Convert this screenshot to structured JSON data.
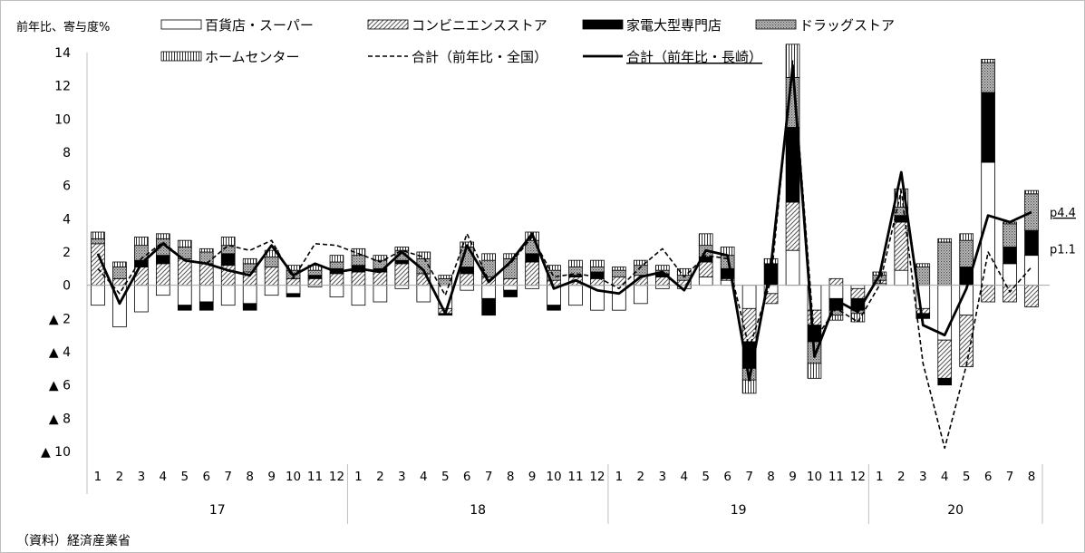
{
  "chart_data": {
    "type": "bar",
    "ylabel": "前年比、寄与度%",
    "ylim": [
      -10,
      14
    ],
    "yticks": [
      {
        "v": 14,
        "label": "14"
      },
      {
        "v": 12,
        "label": "12"
      },
      {
        "v": 10,
        "label": "10"
      },
      {
        "v": 8,
        "label": "8"
      },
      {
        "v": 6,
        "label": "6"
      },
      {
        "v": 4,
        "label": "4"
      },
      {
        "v": 2,
        "label": "2"
      },
      {
        "v": 0,
        "label": "0"
      },
      {
        "v": -2,
        "label": "▲ 2"
      },
      {
        "v": -4,
        "label": "▲ 4"
      },
      {
        "v": -6,
        "label": "▲ 6"
      },
      {
        "v": -8,
        "label": "▲ 8"
      },
      {
        "v": -10,
        "label": "▲ 10"
      }
    ],
    "months": [
      "1",
      "2",
      "3",
      "4",
      "5",
      "6",
      "7",
      "8",
      "9",
      "10",
      "11",
      "12",
      "1",
      "2",
      "3",
      "4",
      "5",
      "6",
      "7",
      "8",
      "9",
      "10",
      "11",
      "12",
      "1",
      "2",
      "3",
      "4",
      "5",
      "6",
      "7",
      "8",
      "9",
      "10",
      "11",
      "12",
      "1",
      "2",
      "3",
      "4",
      "5",
      "6",
      "7",
      "8"
    ],
    "years": [
      {
        "label": "17",
        "start": 0,
        "count": 12
      },
      {
        "label": "18",
        "start": 12,
        "count": 12
      },
      {
        "label": "19",
        "start": 24,
        "count": 12
      },
      {
        "label": "20",
        "start": 36,
        "count": 8
      }
    ],
    "series": [
      {
        "name": "百貨店・スーパー",
        "kind": "bar",
        "fill": "white",
        "values": [
          -1.2,
          -2.5,
          -1.6,
          -0.6,
          -1.2,
          -1.0,
          -1.2,
          -1.1,
          -0.6,
          -0.5,
          -0.1,
          -0.7,
          -1.2,
          -1.0,
          -0.2,
          -1.0,
          -1.4,
          -0.3,
          -0.8,
          -0.3,
          -0.2,
          -1.2,
          -1.2,
          -1.5,
          -1.5,
          -1.1,
          -0.2,
          -0.2,
          0.5,
          0.3,
          -1.4,
          -0.5,
          2.1,
          -1.5,
          -0.8,
          -0.2,
          0.1,
          0.9,
          -1.4,
          -3.3,
          -1.8,
          7.4,
          1.3,
          1.8
        ]
      },
      {
        "name": "コンビニエンスストア",
        "kind": "bar",
        "fill": "diag",
        "values": [
          2.5,
          0.4,
          1.1,
          1.3,
          1.6,
          1.3,
          1.2,
          0.8,
          1.1,
          0.4,
          0.4,
          0.7,
          0.8,
          0.8,
          1.3,
          0.7,
          -0.3,
          0.7,
          0.5,
          0.4,
          1.4,
          0.3,
          0.5,
          0.4,
          0.5,
          0.6,
          0.5,
          0.3,
          0.9,
          0.1,
          -2.0,
          -0.6,
          2.9,
          -0.9,
          0.4,
          -0.6,
          0.2,
          2.9,
          -0.3,
          -2.3,
          -3.1,
          -1.0,
          -1.0,
          -1.3
        ]
      },
      {
        "name": "家電大型専門店",
        "kind": "bar",
        "fill": "black",
        "values": [
          0.0,
          0.0,
          0.4,
          0.5,
          -0.3,
          -0.5,
          0.7,
          -0.4,
          0.0,
          -0.2,
          0.2,
          0.3,
          0.4,
          0.2,
          0.2,
          0.0,
          -0.1,
          0.4,
          -1.0,
          -0.4,
          0.5,
          -0.3,
          0.1,
          0.4,
          0.0,
          0.0,
          0.2,
          0.0,
          0.3,
          0.6,
          -1.6,
          1.3,
          4.5,
          -1.0,
          -0.7,
          -0.7,
          0.0,
          0.4,
          -0.3,
          -0.4,
          1.1,
          4.2,
          1.0,
          1.5
        ]
      },
      {
        "name": "ドラッグストア",
        "kind": "bar",
        "fill": "dots",
        "values": [
          0.3,
          0.7,
          0.9,
          1.0,
          0.7,
          0.7,
          0.5,
          0.5,
          0.6,
          0.5,
          0.3,
          0.4,
          0.6,
          0.5,
          0.6,
          0.9,
          0.4,
          1.2,
          1.0,
          1.2,
          0.8,
          0.6,
          0.5,
          0.3,
          0.4,
          0.6,
          0.2,
          0.3,
          0.7,
          0.8,
          -0.7,
          0.0,
          3.0,
          -1.3,
          -0.3,
          -0.2,
          0.3,
          0.5,
          1.1,
          2.6,
          1.6,
          1.8,
          1.4,
          2.2
        ]
      },
      {
        "name": "ホームセンター",
        "kind": "bar",
        "fill": "vert",
        "values": [
          0.4,
          0.3,
          0.5,
          0.3,
          0.4,
          0.2,
          0.5,
          0.3,
          0.4,
          0.3,
          0.3,
          0.4,
          0.4,
          0.3,
          0.2,
          0.4,
          0.2,
          0.3,
          0.4,
          0.3,
          0.5,
          0.3,
          0.4,
          0.4,
          0.2,
          0.3,
          0.3,
          0.4,
          0.7,
          0.5,
          -0.8,
          0.3,
          2.0,
          -0.9,
          -0.3,
          -0.5,
          0.2,
          1.1,
          0.2,
          0.2,
          0.4,
          0.2,
          0.1,
          0.2
        ]
      },
      {
        "name": "合計（前年比・全国）",
        "kind": "line",
        "dash": true,
        "values": [
          1.0,
          -0.5,
          1.6,
          2.6,
          1.5,
          1.3,
          2.4,
          2.1,
          2.7,
          0.4,
          2.5,
          2.4,
          1.9,
          1.4,
          2.1,
          1.7,
          -0.6,
          3.1,
          0.3,
          1.3,
          2.9,
          0.5,
          0.7,
          0.5,
          -0.2,
          1.1,
          2.2,
          0.5,
          1.8,
          1.6,
          -3.8,
          0.3,
          13.5,
          -3.3,
          -1.4,
          -2.2,
          0.0,
          5.7,
          -4.7,
          -9.8,
          -4.8,
          2.0,
          -0.4,
          1.1
        ]
      },
      {
        "name": "合計（前年比・長崎）",
        "kind": "line",
        "dash": false,
        "values": [
          1.9,
          -1.1,
          1.3,
          2.5,
          1.5,
          1.3,
          0.9,
          0.6,
          2.4,
          0.6,
          1.3,
          0.8,
          1.0,
          0.8,
          2.0,
          0.9,
          -1.7,
          2.4,
          0.2,
          1.4,
          3.1,
          -0.2,
          0.3,
          -0.3,
          -0.5,
          0.5,
          0.8,
          -0.3,
          2.1,
          1.8,
          -5.7,
          1.2,
          13.2,
          -4.3,
          -0.9,
          -1.6,
          0.6,
          6.8,
          -2.4,
          -3.0,
          -0.2,
          4.2,
          3.8,
          4.4
        ]
      }
    ],
    "end_labels": [
      {
        "text": "p4.4",
        "underline": true
      },
      {
        "text": "p1.1",
        "underline": false
      }
    ],
    "source": "（資料）経済産業省",
    "legend_placement": "top"
  }
}
